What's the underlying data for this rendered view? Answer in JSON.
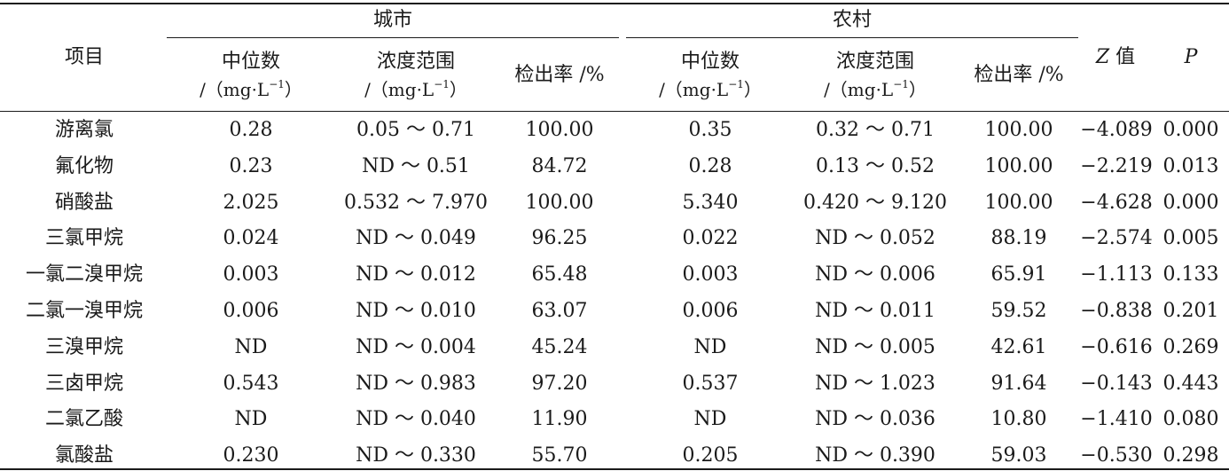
{
  "table": {
    "group_city": "城市",
    "group_rural": "农村",
    "col_item": "项目",
    "col_median": "中位数",
    "col_range": "浓度范围",
    "unit_open": "/（mg·L",
    "unit_exp": "−1",
    "unit_close": "）",
    "col_rate": "检出率 /%",
    "col_z_letter": "Z",
    "col_z_text": " 值",
    "col_p": "P",
    "rows": [
      {
        "item": "游离氯",
        "c_med": "0.28",
        "c_range": "0.05 ～ 0.71",
        "c_rate": "100.00",
        "r_med": "0.35",
        "r_range": "0.32 ～ 0.71",
        "r_rate": "100.00",
        "z": "−4.089",
        "p": "0.000"
      },
      {
        "item": "氟化物",
        "c_med": "0.23",
        "c_range": "ND ～ 0.51",
        "c_rate": "84.72",
        "r_med": "0.28",
        "r_range": "0.13 ～ 0.52",
        "r_rate": "100.00",
        "z": "−2.219",
        "p": "0.013"
      },
      {
        "item": "硝酸盐",
        "c_med": "2.025",
        "c_range": "0.532 ～ 7.970",
        "c_rate": "100.00",
        "r_med": "5.340",
        "r_range": "0.420 ～ 9.120",
        "r_rate": "100.00",
        "z": "−4.628",
        "p": "0.000"
      },
      {
        "item": "三氯甲烷",
        "c_med": "0.024",
        "c_range": "ND ～ 0.049",
        "c_rate": "96.25",
        "r_med": "0.022",
        "r_range": "ND ～ 0.052",
        "r_rate": "88.19",
        "z": "−2.574",
        "p": "0.005"
      },
      {
        "item": "一氯二溴甲烷",
        "c_med": "0.003",
        "c_range": "ND ～ 0.012",
        "c_rate": "65.48",
        "r_med": "0.003",
        "r_range": "ND ～ 0.006",
        "r_rate": "65.91",
        "z": "−1.113",
        "p": "0.133"
      },
      {
        "item": "二氯一溴甲烷",
        "c_med": "0.006",
        "c_range": "ND ～ 0.010",
        "c_rate": "63.07",
        "r_med": "0.006",
        "r_range": "ND ～ 0.011",
        "r_rate": "59.52",
        "z": "−0.838",
        "p": "0.201"
      },
      {
        "item": "三溴甲烷",
        "c_med": "ND",
        "c_range": "ND ～ 0.004",
        "c_rate": "45.24",
        "r_med": "ND",
        "r_range": "ND ～ 0.005",
        "r_rate": "42.61",
        "z": "−0.616",
        "p": "0.269"
      },
      {
        "item": "三卤甲烷",
        "c_med": "0.543",
        "c_range": "ND ～ 0.983",
        "c_rate": "97.20",
        "r_med": "0.537",
        "r_range": "ND ～ 1.023",
        "r_rate": "91.64",
        "z": "−0.143",
        "p": "0.443"
      },
      {
        "item": "二氯乙酸",
        "c_med": "ND",
        "c_range": "ND ～ 0.040",
        "c_rate": "11.90",
        "r_med": "ND",
        "r_range": "ND ～ 0.036",
        "r_rate": "10.80",
        "z": "−1.410",
        "p": "0.080"
      },
      {
        "item": "氯酸盐",
        "c_med": "0.230",
        "c_range": "ND ～ 0.330",
        "c_rate": "55.70",
        "r_med": "0.205",
        "r_range": "ND ～ 0.390",
        "r_rate": "59.03",
        "z": "−0.530",
        "p": "0.298"
      }
    ]
  }
}
